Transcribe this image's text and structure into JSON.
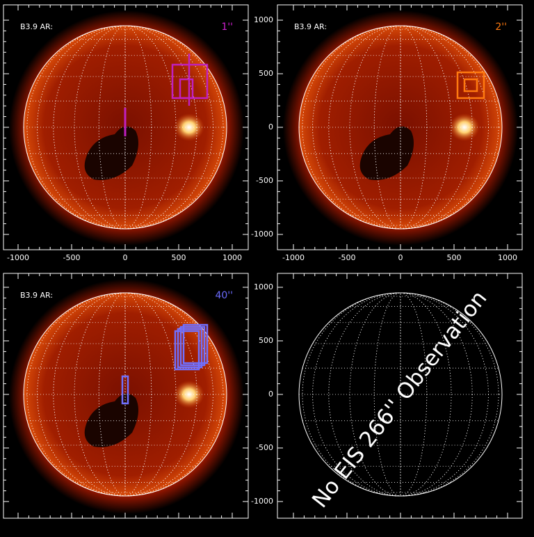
{
  "panels": [
    {
      "label": "B3.9 AR:",
      "tag": "1''",
      "xticks": [
        "-1000",
        "-500",
        "0",
        "500",
        "1000"
      ],
      "yticks": []
    },
    {
      "label": "B3.9 AR:",
      "tag": "2''",
      "xticks": [
        "-1000",
        "-500",
        "0",
        "500",
        "1000"
      ],
      "yticks": [
        "1000",
        "500",
        "0",
        "-500",
        "-1000"
      ]
    },
    {
      "label": "B3.9 AR:",
      "tag": "40''",
      "xticks": [],
      "yticks": []
    },
    {
      "label": "",
      "tag": "",
      "xticks": [],
      "yticks": [
        "1000",
        "500",
        "0",
        "-500",
        "-1000"
      ]
    }
  ],
  "message": "No EIS 266'' Observation"
}
